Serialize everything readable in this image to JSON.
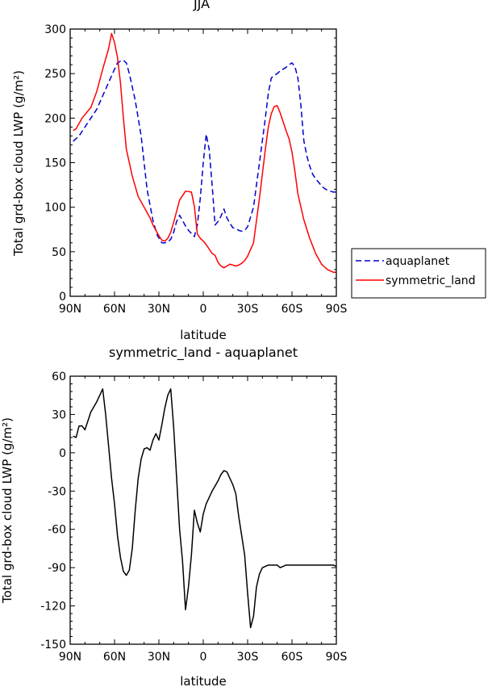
{
  "chart_data": [
    {
      "type": "line",
      "title": "JJA",
      "xlabel": "latitude",
      "ylabel": "Total grd-box cloud LWP (g/m²)",
      "ylim": [
        0,
        300
      ],
      "xlim": [
        -90,
        90
      ],
      "xticks": [
        -90,
        -60,
        -30,
        0,
        30,
        60,
        90
      ],
      "xtick_labels": [
        "90N",
        "60N",
        "30N",
        "0",
        "30S",
        "60S",
        "90S"
      ],
      "yticks": [
        0,
        50,
        100,
        150,
        200,
        250,
        300
      ],
      "ytick_labels": [
        "0",
        "50",
        "100",
        "150",
        "200",
        "250",
        "300"
      ],
      "legend_position": "right",
      "series": [
        {
          "name": "aquaplanet",
          "color": "#0000cc",
          "dash": "dashed",
          "x": [
            -88,
            -84,
            -80,
            -76,
            -72,
            -68,
            -64,
            -60,
            -58,
            -56,
            -54,
            -52,
            -50,
            -46,
            -42,
            -38,
            -34,
            -31,
            -28,
            -26,
            -24,
            -22,
            -20,
            -18,
            -16,
            -14,
            -12,
            -10,
            -6,
            -4,
            -2,
            0,
            2,
            4,
            6,
            8,
            10,
            12,
            14,
            16,
            18,
            20,
            22,
            24,
            26,
            28,
            30,
            34,
            38,
            42,
            44,
            46,
            48,
            50,
            52,
            56,
            58,
            60,
            62,
            64,
            66,
            68,
            70,
            72,
            74,
            76,
            78,
            80,
            82,
            84,
            86,
            88,
            90
          ],
          "y": [
            174,
            180,
            190,
            200,
            210,
            225,
            240,
            255,
            262,
            264,
            265,
            262,
            250,
            220,
            180,
            120,
            85,
            68,
            60,
            60,
            61,
            64,
            72,
            84,
            91,
            85,
            79,
            74,
            67,
            80,
            110,
            150,
            182,
            165,
            125,
            80,
            84,
            90,
            98,
            88,
            82,
            77,
            76,
            74,
            73,
            74,
            78,
            100,
            150,
            200,
            228,
            245,
            248,
            250,
            253,
            257,
            260,
            262,
            258,
            245,
            215,
            175,
            158,
            146,
            137,
            132,
            128,
            124,
            121,
            119,
            118,
            117,
            117
          ]
        },
        {
          "name": "symmetric_land",
          "color": "#ff0000",
          "dash": "solid",
          "x": [
            -88,
            -86,
            -82,
            -80,
            -78,
            -76,
            -72,
            -68,
            -64,
            -62,
            -60,
            -58,
            -56,
            -54,
            -52,
            -48,
            -44,
            -40,
            -36,
            -34,
            -30,
            -28,
            -26,
            -24,
            -22,
            -20,
            -16,
            -12,
            -8,
            -6,
            -4,
            -2,
            0,
            2,
            4,
            6,
            8,
            10,
            12,
            14,
            16,
            18,
            20,
            22,
            24,
            26,
            28,
            30,
            34,
            38,
            42,
            44,
            46,
            48,
            50,
            52,
            54,
            56,
            58,
            60,
            62,
            64,
            68,
            72,
            76,
            80,
            84,
            88,
            90
          ],
          "y": [
            186,
            188,
            200,
            204,
            208,
            212,
            230,
            255,
            278,
            295,
            285,
            268,
            240,
            200,
            165,
            135,
            112,
            100,
            88,
            80,
            68,
            63,
            62,
            65,
            72,
            83,
            108,
            118,
            117,
            101,
            70,
            65,
            62,
            58,
            53,
            48,
            46,
            38,
            34,
            32,
            34,
            36,
            35,
            34,
            35,
            37,
            40,
            45,
            60,
            110,
            165,
            190,
            205,
            213,
            214,
            206,
            196,
            186,
            177,
            162,
            140,
            115,
            86,
            65,
            48,
            36,
            30,
            27,
            27
          ]
        }
      ]
    },
    {
      "type": "line",
      "title": "symmetric_land - aquaplanet",
      "xlabel": "latitude",
      "ylabel": "Total grd-box cloud LWP (g/m²)",
      "ylim": [
        -150,
        60
      ],
      "xlim": [
        -90,
        90
      ],
      "xticks": [
        -90,
        -60,
        -30,
        0,
        30,
        60,
        90
      ],
      "xtick_labels": [
        "90N",
        "60N",
        "30N",
        "0",
        "30S",
        "60S",
        "90S"
      ],
      "yticks": [
        -150,
        -120,
        -90,
        -60,
        -30,
        0,
        30,
        60
      ],
      "ytick_labels": [
        "-150",
        "-120",
        "-90",
        "-60",
        "-30",
        "0",
        "30",
        "60"
      ],
      "series": [
        {
          "color": "#000000",
          "dash": "solid",
          "x": [
            -88,
            -86,
            -84,
            -82,
            -80,
            -78,
            -76,
            -74,
            -72,
            -70,
            -68,
            -66,
            -64,
            -62,
            -60,
            -58,
            -56,
            -54,
            -52,
            -50,
            -48,
            -46,
            -44,
            -42,
            -40,
            -38,
            -36,
            -34,
            -32,
            -30,
            -28,
            -26,
            -24,
            -22,
            -20,
            -18,
            -16,
            -14,
            -12,
            -10,
            -8,
            -6,
            -4,
            -2,
            0,
            2,
            4,
            6,
            8,
            10,
            12,
            14,
            16,
            18,
            20,
            22,
            24,
            26,
            28,
            30,
            32,
            34,
            36,
            38,
            40,
            42,
            44,
            46,
            48,
            50,
            52,
            54,
            56,
            58,
            60,
            62,
            64,
            66,
            68,
            70,
            72,
            74,
            76,
            78,
            80,
            82,
            84,
            86,
            88,
            90
          ],
          "y": [
            13,
            12,
            21,
            21,
            18,
            25,
            32,
            36,
            40,
            45,
            50,
            30,
            5,
            -20,
            -40,
            -65,
            -82,
            -93,
            -96,
            -92,
            -75,
            -45,
            -20,
            -5,
            3,
            4,
            2,
            10,
            15,
            10,
            22,
            35,
            45,
            50,
            20,
            -20,
            -60,
            -85,
            -123,
            -105,
            -80,
            -45,
            -55,
            -62,
            -48,
            -40,
            -35,
            -30,
            -26,
            -22,
            -17,
            -14,
            -15,
            -20,
            -25,
            -32,
            -50,
            -65,
            -80,
            -110,
            -137,
            -128,
            -105,
            -95,
            -90,
            -89,
            -88,
            -88,
            -88,
            -88,
            -90,
            -89,
            -88,
            -88,
            -88,
            -88,
            -88,
            -88,
            -88,
            -88,
            -88,
            -88,
            -88,
            -88,
            -88,
            -88,
            -88,
            -88,
            -88,
            -89
          ]
        }
      ]
    }
  ]
}
